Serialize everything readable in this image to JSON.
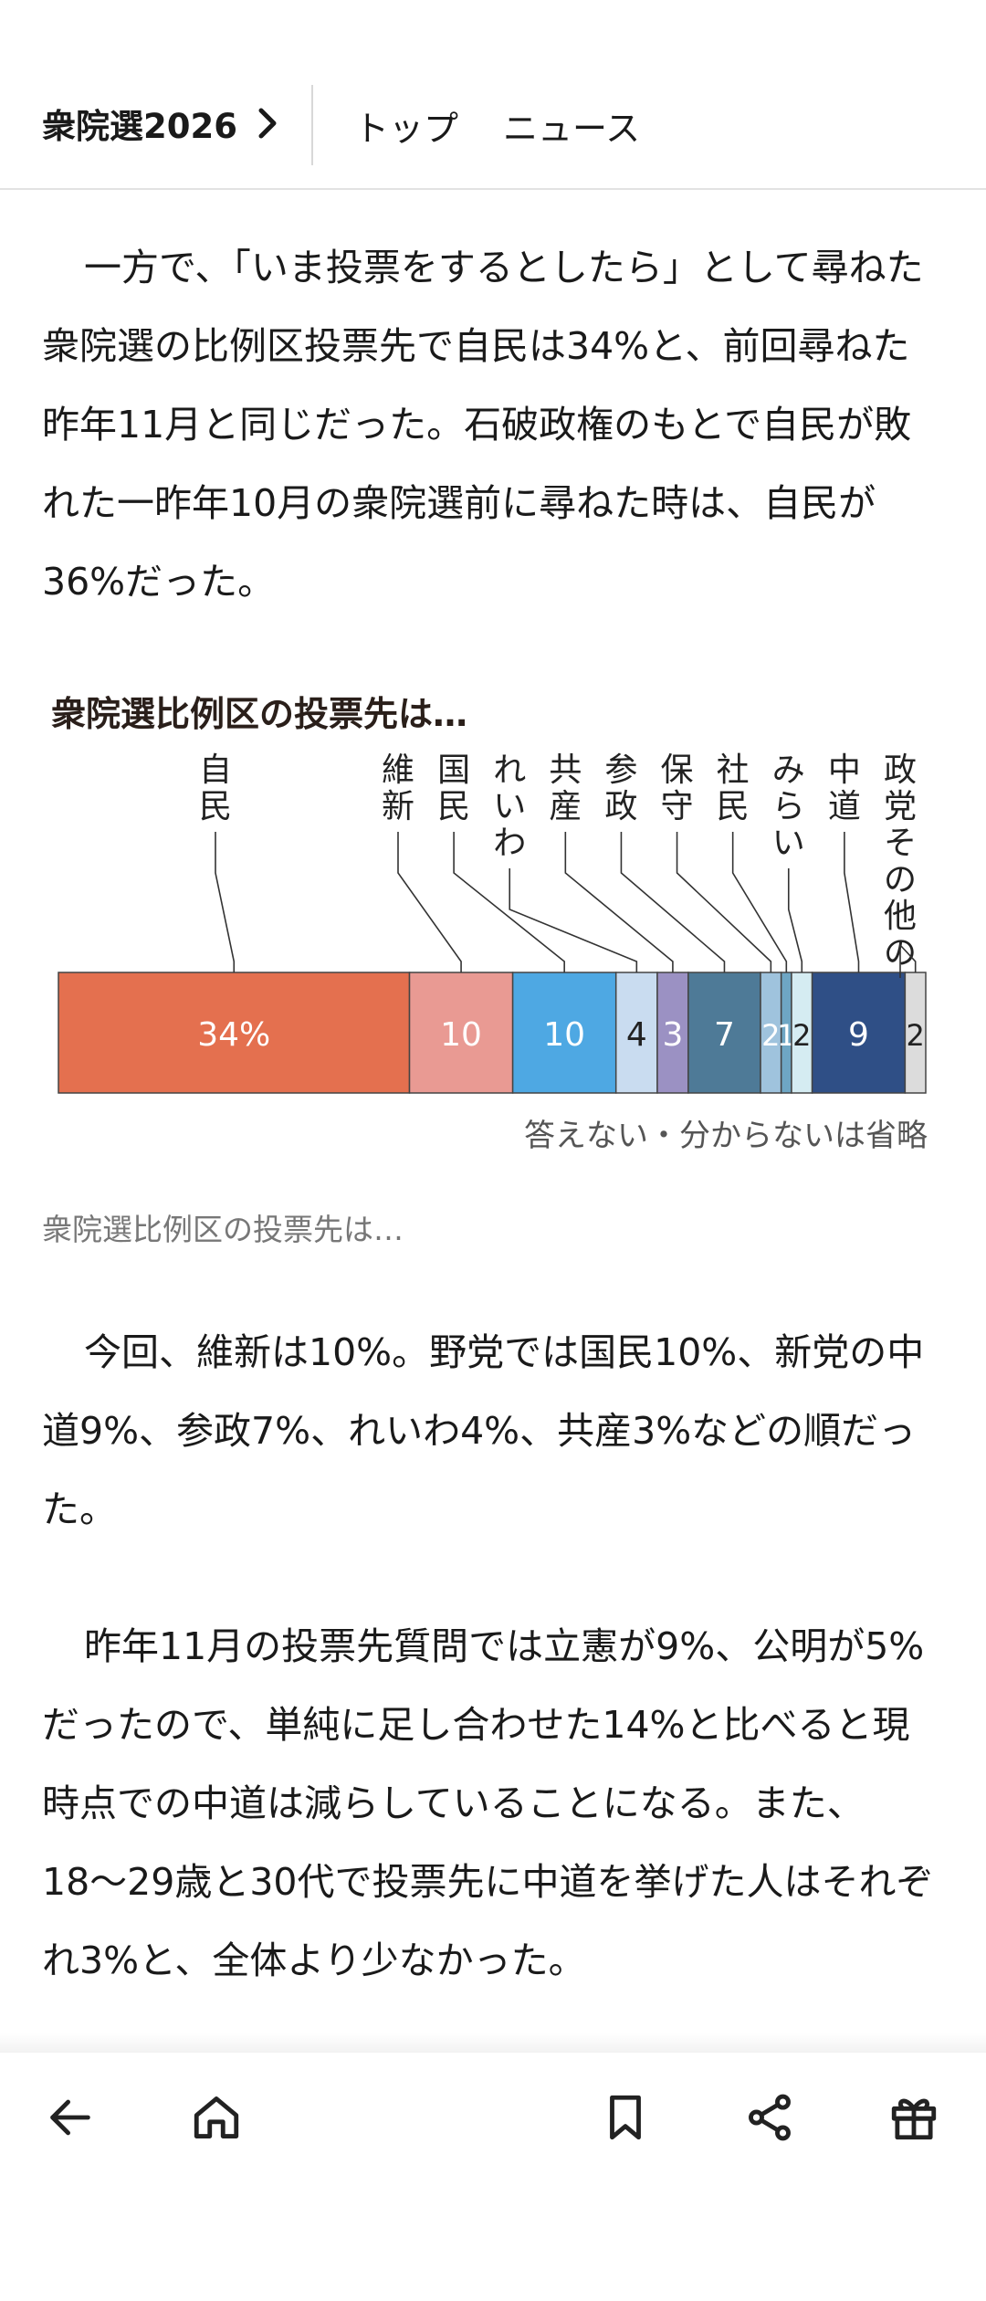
{
  "header": {
    "section_title": "衆院選2026",
    "nav": [
      "トップ",
      "ニュース"
    ]
  },
  "article": {
    "paragraphs_top": [
      "一方で、「いま投票をするとしたら」として尋ねた衆院選の比例区投票先で自民は34%と、前回尋ねた昨年11月と同じだった。石破政権のもとで自民が敗れた一昨年10月の衆院選前に尋ねた時は、自民が36%だった。"
    ],
    "figure_caption": "衆院選比例区の投票先は…",
    "paragraphs_bottom": [
      "今回、維新は10%。野党では国民10%、新党の中道9%、参政7%、れいわ4%、共産3%などの順だった。",
      "昨年11月の投票先質問では立憲が9%、公明が5%だったので、単純に足し合わせた14%と比べると現時点での中道は減らしていることになる。また、18〜29歳と30代で投票先に中道を挙げた人はそれぞれ3%と、全体より少なかった。"
    ]
  },
  "chart_data": {
    "type": "bar",
    "orientation": "horizontal-stacked",
    "title": "衆院選比例区の投票先は…",
    "note": "答えない・分からないは省略",
    "categories": [
      "自民",
      "維新",
      "国民",
      "れいわ",
      "共産",
      "参政",
      "保守",
      "社民",
      "みらい",
      "中道",
      "政党その他の"
    ],
    "values": [
      34,
      10,
      10,
      4,
      3,
      7,
      2,
      1,
      2,
      9,
      2
    ],
    "value_labels": [
      "34%",
      "10",
      "10",
      "4",
      "3",
      "7",
      "2",
      "1",
      "2",
      "9",
      "2"
    ],
    "colors": [
      "#e4704f",
      "#e99a93",
      "#4ea8e3",
      "#c9dcf0",
      "#9b91c3",
      "#4e7a97",
      "#9fc3dd",
      "#6ea6c4",
      "#d5ecf2",
      "#2f4f86",
      "#dcdcdc"
    ],
    "label_colors": [
      "#ffffff",
      "#ffffff",
      "#ffffff",
      "#222222",
      "#ffffff",
      "#ffffff",
      "#ffffff",
      "#ffffff",
      "#222222",
      "#ffffff",
      "#222222"
    ],
    "xlim": [
      0,
      84
    ]
  },
  "bottom_nav": {
    "icons": [
      "back-arrow-icon",
      "home-icon",
      "bookmark-icon",
      "share-icon",
      "gift-icon"
    ]
  }
}
